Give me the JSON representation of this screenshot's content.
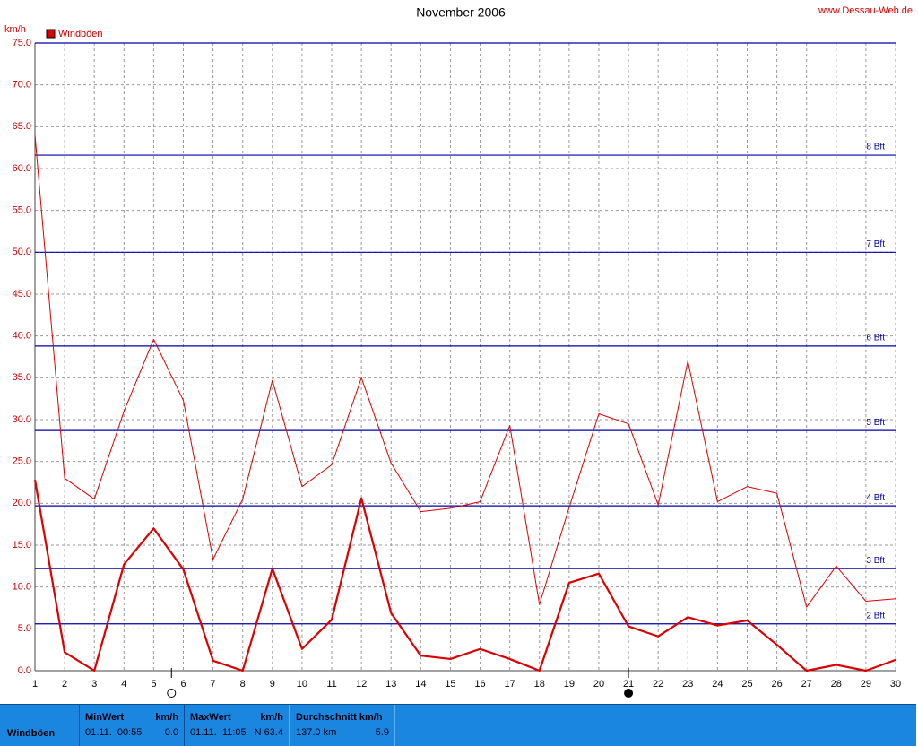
{
  "chart_data": {
    "type": "line",
    "title": "November 2006",
    "source": "www.Dessau-Web.de",
    "y_unit": "km/h",
    "x": [
      1,
      2,
      3,
      4,
      5,
      6,
      7,
      8,
      9,
      10,
      11,
      12,
      13,
      14,
      15,
      16,
      17,
      18,
      19,
      20,
      21,
      22,
      23,
      24,
      25,
      26,
      27,
      28,
      29,
      30
    ],
    "xlim": [
      1,
      30
    ],
    "xticks": [
      1,
      2,
      3,
      4,
      5,
      6,
      7,
      8,
      9,
      10,
      11,
      12,
      13,
      14,
      15,
      16,
      17,
      18,
      19,
      20,
      21,
      22,
      23,
      24,
      25,
      26,
      27,
      28,
      29,
      30
    ],
    "ylim": [
      0,
      75
    ],
    "yticks": [
      {
        "value": 0,
        "label": "0.0"
      },
      {
        "value": 5,
        "label": "5.0"
      },
      {
        "value": 10,
        "label": "10.0"
      },
      {
        "value": 15,
        "label": "15.0"
      },
      {
        "value": 20,
        "label": "20.0"
      },
      {
        "value": 25,
        "label": "25.0"
      },
      {
        "value": 30,
        "label": "30.0"
      },
      {
        "value": 35,
        "label": "35.0"
      },
      {
        "value": 40,
        "label": "40.0"
      },
      {
        "value": 45,
        "label": "45.0"
      },
      {
        "value": 50,
        "label": "50.0"
      },
      {
        "value": 55,
        "label": "55.0"
      },
      {
        "value": 60,
        "label": "60.0"
      },
      {
        "value": 65,
        "label": "65.0"
      },
      {
        "value": 70,
        "label": "70.0"
      },
      {
        "value": 75,
        "label": "75.0"
      }
    ],
    "grid": true,
    "reference_lines": [
      {
        "value": 5.6,
        "label": "2 Bft"
      },
      {
        "value": 12.2,
        "label": "3 Bft"
      },
      {
        "value": 19.7,
        "label": "4 Bft"
      },
      {
        "value": 28.7,
        "label": "5 Bft"
      },
      {
        "value": 38.8,
        "label": "6 Bft"
      },
      {
        "value": 50.0,
        "label": "7 Bft"
      },
      {
        "value": 61.6,
        "label": "8 Bft"
      },
      {
        "value": 75.0
      }
    ],
    "reference_color": "#0000aa",
    "markers": [
      {
        "x": 5.6,
        "fill": "#ffffff"
      },
      {
        "x": 21,
        "fill": "#000000"
      }
    ],
    "series": [
      {
        "name": "Windböen",
        "color": "#dd0000",
        "width": 2.2,
        "values": [
          22.8,
          2.2,
          0.0,
          12.7,
          17.0,
          12.1,
          1.2,
          0.0,
          12.2,
          2.6,
          6.1,
          20.6,
          6.9,
          1.8,
          1.4,
          2.6,
          1.4,
          0.0,
          10.5,
          11.6,
          5.3,
          4.1,
          6.4,
          5.4,
          6.0,
          3.1,
          0.0,
          0.7,
          0.0,
          1.3
        ]
      },
      {
        "color": "#dd0000",
        "width": 1,
        "values": [
          64.0,
          23.0,
          20.5,
          31.0,
          39.6,
          32.3,
          13.3,
          20.5,
          34.7,
          22.0,
          24.6,
          35.0,
          24.8,
          19.0,
          19.4,
          20.2,
          29.3,
          7.9,
          19.5,
          30.7,
          29.5,
          19.8,
          37.0,
          20.2,
          22.0,
          21.2,
          7.6,
          12.5,
          8.3,
          8.6
        ]
      }
    ]
  },
  "footer": {
    "row_label": "Windböen",
    "cells": [
      {
        "header": "MinWert",
        "header_right": "km/h",
        "left": "01.11.  00:55",
        "right": "0.0"
      },
      {
        "header": "MaxWert",
        "header_right": "km/h",
        "left": "01.11.  11:05",
        "right": "N 63.4"
      },
      {
        "header": "Durchschnitt km/h",
        "left": "137.0 km",
        "right": "5.9"
      }
    ]
  }
}
